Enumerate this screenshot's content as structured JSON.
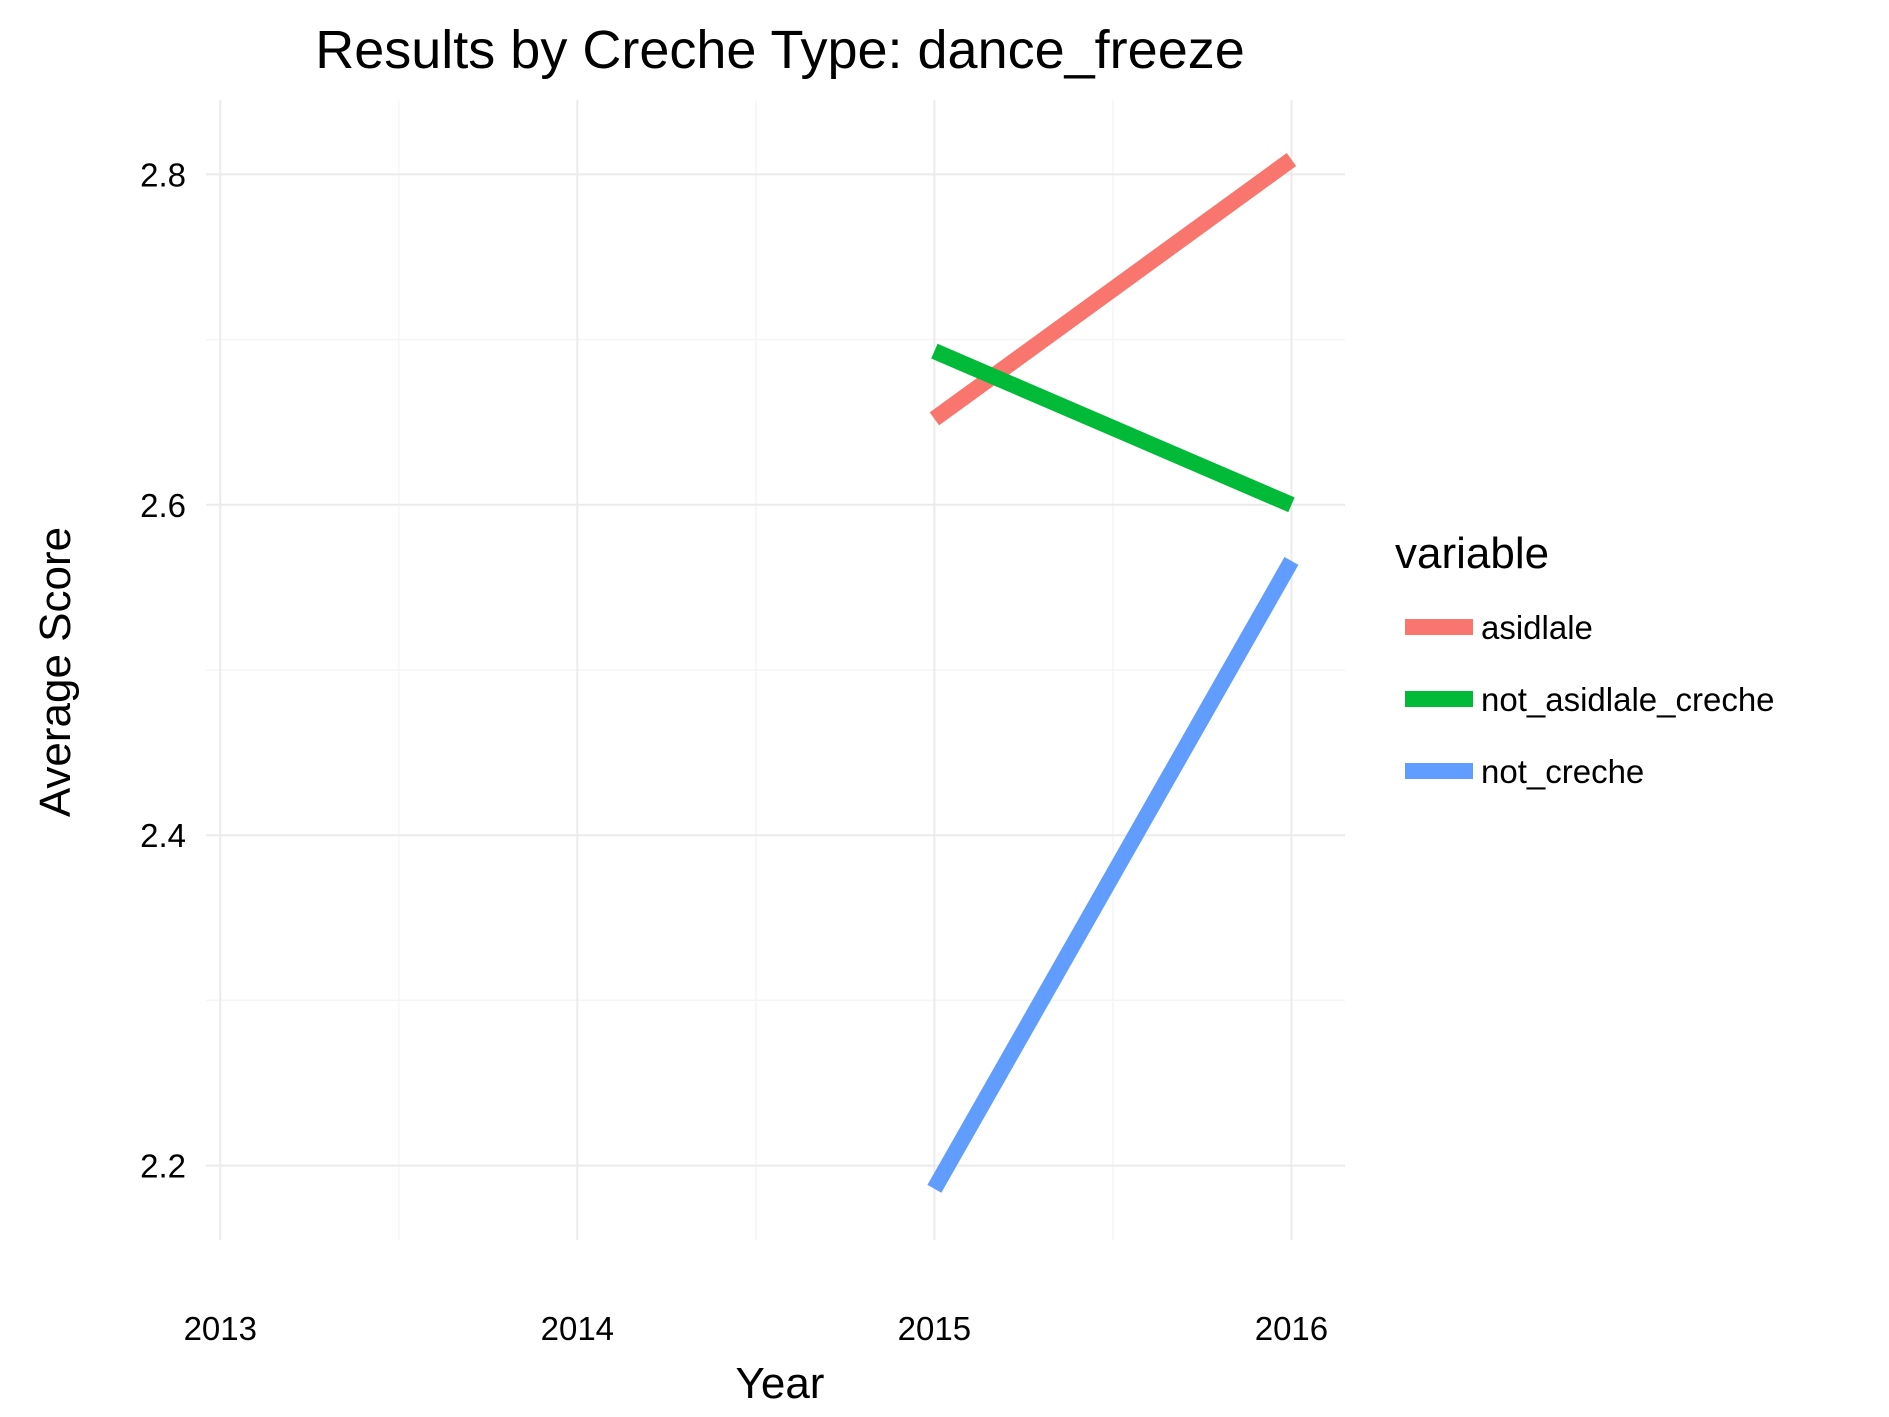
{
  "chart_data": {
    "type": "line",
    "title": "Results by Creche Type: dance_freeze",
    "xlabel": "Year",
    "ylabel": "Average Score",
    "x_ticks": [
      "2013",
      "2014",
      "2015",
      "2016"
    ],
    "y_ticks": [
      "2.2",
      "2.4",
      "2.6",
      "2.8"
    ],
    "xlim": [
      2012.96,
      2016.15
    ],
    "ylim": [
      2.155,
      2.845
    ],
    "grid": true,
    "legend": {
      "title": "variable",
      "placement": "right"
    },
    "series": [
      {
        "name": "asidlale",
        "color": "#F8766D",
        "x": [
          2015,
          2016
        ],
        "y": [
          2.652,
          2.809
        ]
      },
      {
        "name": "not_asidlale_creche",
        "color": "#00BA38",
        "x": [
          2015,
          2016
        ],
        "y": [
          2.693,
          2.6
        ]
      },
      {
        "name": "not_creche",
        "color": "#619CFF",
        "x": [
          2015,
          2016
        ],
        "y": [
          2.186,
          2.566
        ]
      }
    ]
  }
}
